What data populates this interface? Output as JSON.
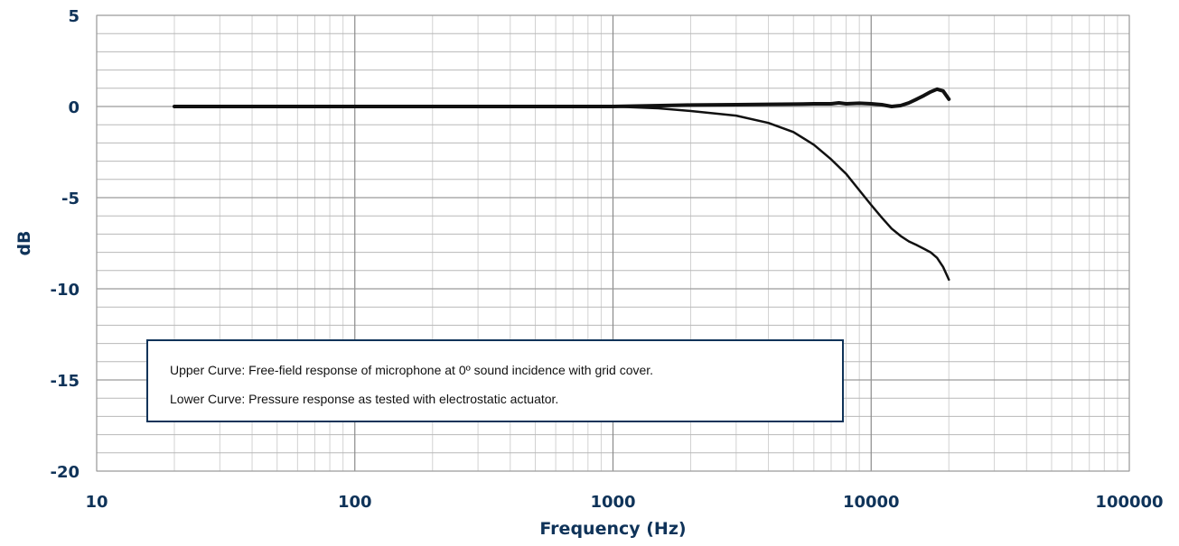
{
  "chart_data": {
    "type": "line",
    "xscale": "log",
    "xlim": [
      10,
      100000
    ],
    "ylim": [
      -20,
      5
    ],
    "xlabel": "Frequency (Hz)",
    "ylabel": "dB",
    "xticks": [
      "10",
      "100",
      "1000",
      "10000",
      "100000"
    ],
    "yticks": [
      "5",
      "0",
      "-5",
      "-10",
      "-15",
      "-20"
    ],
    "grid": true,
    "colors": {
      "axis_text": "#0f3359",
      "curve": "#111111",
      "grid": "#b8b8b8"
    },
    "annotations": [
      "Upper Curve: Free-field response of microphone at 0º sound incidence with grid cover.",
      "Lower Curve: Pressure response as tested with electrostatic actuator."
    ],
    "series": [
      {
        "x": [
          20,
          50,
          100,
          200,
          400,
          700,
          1000,
          2000,
          3000,
          4000,
          5000,
          6000,
          7000,
          7500,
          8000,
          9000,
          10000,
          11000,
          12000,
          13000,
          14000,
          15000,
          16000,
          17000,
          18000,
          19000,
          20000
        ],
        "y": [
          0,
          0,
          0,
          0,
          0,
          0,
          0,
          0.08,
          0.1,
          0.12,
          0.13,
          0.15,
          0.15,
          0.2,
          0.15,
          0.18,
          0.15,
          0.1,
          0,
          0.05,
          0.2,
          0.4,
          0.6,
          0.8,
          0.95,
          0.85,
          0.4
        ]
      },
      {
        "x": [
          20,
          100,
          500,
          1000,
          1500,
          2000,
          3000,
          4000,
          5000,
          6000,
          7000,
          8000,
          9000,
          10000,
          11000,
          12000,
          13000,
          14000,
          15000,
          16000,
          17000,
          18000,
          19000,
          20000
        ],
        "y": [
          0,
          0,
          0,
          0,
          -0.1,
          -0.25,
          -0.5,
          -0.9,
          -1.4,
          -2.1,
          -2.9,
          -3.7,
          -4.6,
          -5.4,
          -6.1,
          -6.7,
          -7.1,
          -7.4,
          -7.6,
          -7.8,
          -8.0,
          -8.3,
          -8.8,
          -9.5
        ]
      }
    ]
  }
}
